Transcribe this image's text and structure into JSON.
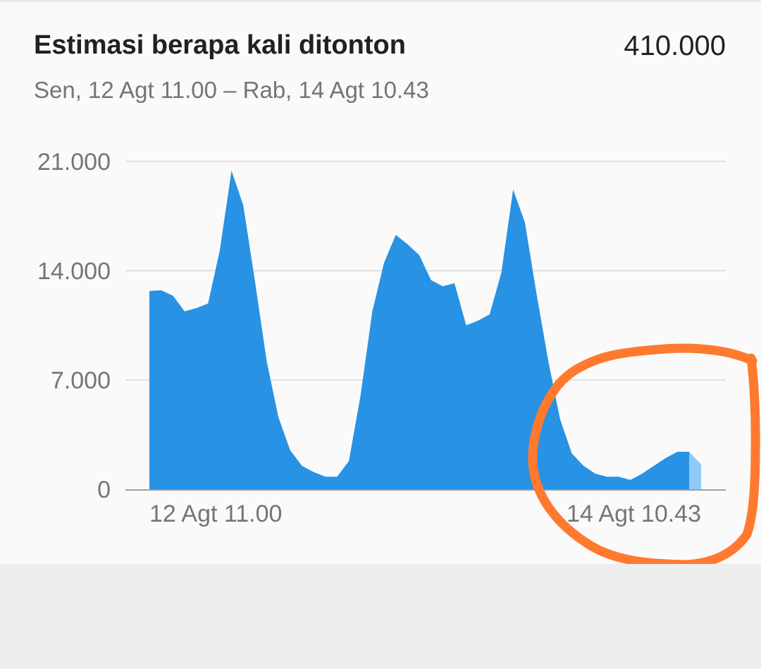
{
  "header": {
    "title": "Estimasi berapa kali ditonton",
    "total": "410.000",
    "subtitle": "Sen, 12 Agt 11.00 – Rab, 14 Agt 10.43"
  },
  "colors": {
    "area": "#2892e4",
    "area_partial": "#90caf9",
    "gridline": "#e0e0e0",
    "axis": "#9e9e9e",
    "annotation": "#ff7a2f"
  },
  "chart_data": {
    "type": "area",
    "title": "Estimasi berapa kali ditonton",
    "xlabel": "",
    "ylabel": "",
    "ylim": [
      0,
      21000
    ],
    "yticks": [
      {
        "value": 0,
        "label": "0"
      },
      {
        "value": 7000,
        "label": "7.000"
      },
      {
        "value": 14000,
        "label": "14.000"
      },
      {
        "value": 21000,
        "label": "21.000"
      }
    ],
    "xtick_labels": [
      "12 Agt 11.00",
      "14 Agt 10.43"
    ],
    "grid": true,
    "values": [
      12700,
      12750,
      12400,
      11400,
      11600,
      11900,
      15300,
      20400,
      18200,
      13300,
      8200,
      4600,
      2500,
      1500,
      1100,
      800,
      800,
      1800,
      6000,
      11400,
      14500,
      16300,
      15700,
      15000,
      13400,
      13000,
      13200,
      10500,
      10800,
      11200,
      13900,
      19200,
      17100,
      12500,
      8200,
      4500,
      2300,
      1500,
      1000,
      800,
      800,
      600,
      1000,
      1500,
      2000,
      2400,
      2400
    ],
    "partial_last_value": 1600,
    "annotation": "orange hand-drawn circle around the last hours of the series"
  }
}
